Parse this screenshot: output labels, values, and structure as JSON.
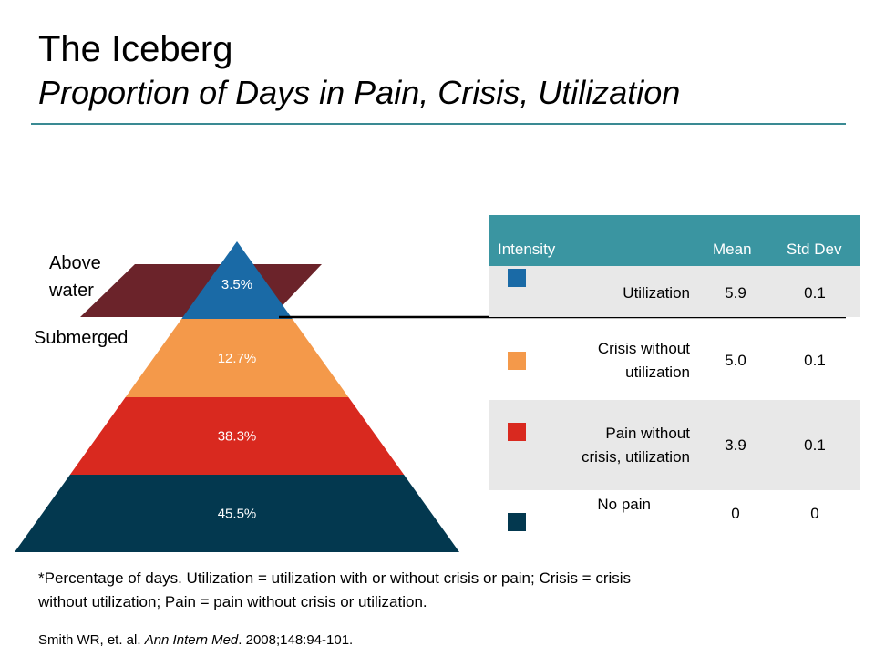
{
  "title": "The Iceberg",
  "subtitle": "Proportion of Days in Pain, Crisis, Utilization",
  "labels": {
    "above": "Above water",
    "above_line1": "Above",
    "above_line2": "water",
    "submerged": "Submerged"
  },
  "colors": {
    "accent": "#3a8a93",
    "header": "#3a95a1",
    "water": "#6b232a"
  },
  "chart_data": {
    "type": "pyramid",
    "title": "The Iceberg",
    "categories": [
      "Utilization",
      "Crisis without utilization",
      "Pain without crisis, utilization",
      "No pain"
    ],
    "values": [
      3.5,
      12.7,
      38.3,
      45.5
    ],
    "value_labels": [
      "3.5%",
      "12.7%",
      "38.3%",
      "45.5%"
    ],
    "colors": [
      "#1a6aa6",
      "#f4994a",
      "#d9291f",
      "#03384f"
    ]
  },
  "table": {
    "headers": {
      "intensity": "Intensity",
      "mean": "Mean",
      "std": "Std Dev"
    },
    "rows": [
      {
        "label_line1": "Utilization",
        "label_line2": "",
        "mean": "5.9",
        "std": "0.1",
        "color": "#1a6aa6"
      },
      {
        "label_line1": "Crisis without",
        "label_line2": "utilization",
        "mean": "5.0",
        "std": "0.1",
        "color": "#f4994a"
      },
      {
        "label_line1": "Pain without",
        "label_line2": "crisis, utilization",
        "mean": "3.9",
        "std": "0.1",
        "color": "#d9291f"
      },
      {
        "label_line1": "No pain",
        "label_line2": "",
        "mean": "0",
        "std": "0",
        "color": "#03384f"
      }
    ]
  },
  "footnote": {
    "line1": "*Percentage of days. Utilization = utilization with or without crisis or pain; Crisis = crisis",
    "line2": "without utilization; Pain = pain without crisis or utilization."
  },
  "citation": {
    "authors": "Smith WR, et. al. ",
    "journal": "Ann Intern Med",
    "details": ". 2008;148:94-101."
  }
}
